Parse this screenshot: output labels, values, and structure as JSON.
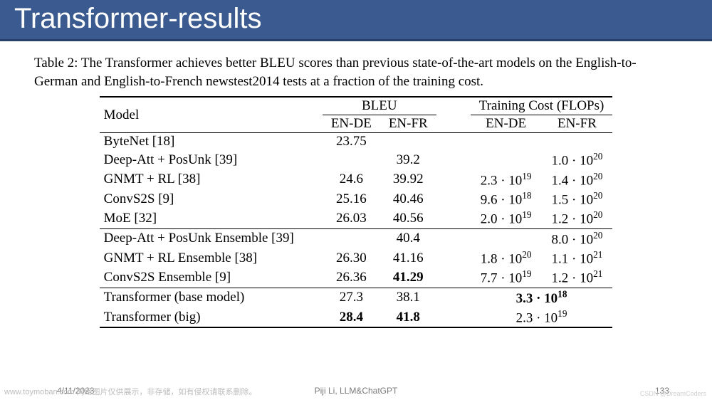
{
  "colors": {
    "title_bg": "#3b5a8f",
    "title_fg": "#ffffff",
    "title_border": "#27406a",
    "text": "#000000",
    "footer": "#7a7a7a",
    "watermark": "#bdbdbd"
  },
  "title": "Transformer-results",
  "caption": "Table 2: The Transformer achieves better BLEU scores than previous state-of-the-art models on the English-to-German and English-to-French newstest2014 tests at a fraction of the training cost.",
  "table": {
    "header_model": "Model",
    "header_bleu": "BLEU",
    "header_cost": "Training Cost (FLOPs)",
    "sub_en_de": "EN-DE",
    "sub_en_fr": "EN-FR",
    "groups": [
      [
        {
          "model": "ByteNet [18]",
          "bleu_de": "23.75",
          "bleu_fr": "",
          "cost_de": "",
          "cost_fr": ""
        },
        {
          "model": "Deep-Att + PosUnk [39]",
          "bleu_de": "",
          "bleu_fr": "39.2",
          "cost_de": "",
          "cost_fr": "1.0 · 10^20"
        },
        {
          "model": "GNMT + RL [38]",
          "bleu_de": "24.6",
          "bleu_fr": "39.92",
          "cost_de": "2.3 · 10^19",
          "cost_fr": "1.4 · 10^20"
        },
        {
          "model": "ConvS2S [9]",
          "bleu_de": "25.16",
          "bleu_fr": "40.46",
          "cost_de": "9.6 · 10^18",
          "cost_fr": "1.5 · 10^20"
        },
        {
          "model": "MoE [32]",
          "bleu_de": "26.03",
          "bleu_fr": "40.56",
          "cost_de": "2.0 · 10^19",
          "cost_fr": "1.2 · 10^20"
        }
      ],
      [
        {
          "model": "Deep-Att + PosUnk Ensemble [39]",
          "bleu_de": "",
          "bleu_fr": "40.4",
          "cost_de": "",
          "cost_fr": "8.0 · 10^20"
        },
        {
          "model": "GNMT + RL Ensemble [38]",
          "bleu_de": "26.30",
          "bleu_fr": "41.16",
          "cost_de": "1.8 · 10^20",
          "cost_fr": "1.1 · 10^21"
        },
        {
          "model": "ConvS2S Ensemble [9]",
          "bleu_de": "26.36",
          "bleu_fr": "41.29",
          "bleu_fr_bold": true,
          "cost_de": "7.7 · 10^19",
          "cost_fr": "1.2 · 10^21"
        }
      ],
      [
        {
          "model": "Transformer (base model)",
          "bleu_de": "27.3",
          "bleu_fr": "38.1",
          "cost_merged": "3.3 · 10^18",
          "cost_merged_bold": true
        },
        {
          "model": "Transformer (big)",
          "bleu_de": "28.4",
          "bleu_de_bold": true,
          "bleu_fr": "41.8",
          "bleu_fr_bold": true,
          "cost_merged": "2.3 · 10^19"
        }
      ]
    ]
  },
  "footer": {
    "date": "4/11/2023",
    "center": "Piji Li, LLM&ChatGPT",
    "page": "133"
  },
  "watermark": "www.toymoban.com 网络图片仅供展示，非存储，如有侵权请联系删除。",
  "watermark2": "CSDN @DreamCoders"
}
